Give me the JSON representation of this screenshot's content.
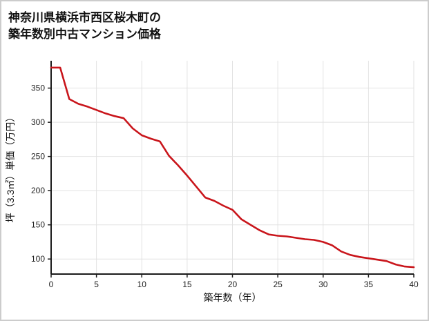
{
  "header": {
    "title_line1": "神奈川県横浜市西区桜木町の",
    "title_line2": "築年数別中古マンション価格"
  },
  "chart_data": {
    "type": "line",
    "title": "神奈川県横浜市西区桜木町の築年数別中古マンション価格",
    "xlabel": "築年数（年）",
    "ylabel": "坪（3.3㎡）単価（万円）",
    "xlim": [
      0,
      40
    ],
    "ylim": [
      78,
      390
    ],
    "xticks": [
      0,
      5,
      10,
      15,
      20,
      25,
      30,
      35,
      40
    ],
    "yticks": [
      100,
      150,
      200,
      250,
      300,
      350
    ],
    "grid": true,
    "legend": "none",
    "colors": {
      "line": "#c9151b",
      "grid": "#e2e2e2",
      "axis": "#1a1a1a",
      "card_border": "#cccccc"
    },
    "series": [
      {
        "name": "坪単価（万円）",
        "x": [
          0,
          1,
          2,
          3,
          4,
          5,
          6,
          7,
          8,
          9,
          10,
          11,
          12,
          13,
          14,
          15,
          16,
          17,
          18,
          19,
          20,
          21,
          22,
          23,
          24,
          25,
          26,
          27,
          28,
          29,
          30,
          31,
          32,
          33,
          34,
          35,
          36,
          37,
          38,
          39,
          40
        ],
        "y": [
          380,
          380,
          334,
          327,
          323,
          318,
          313,
          309,
          306,
          291,
          281,
          276,
          272,
          251,
          237,
          222,
          206,
          190,
          185,
          178,
          172,
          158,
          150,
          142,
          136,
          134,
          133,
          131,
          129,
          128,
          125,
          120,
          111,
          106,
          103,
          101,
          99,
          97,
          92,
          89,
          88
        ]
      }
    ]
  }
}
